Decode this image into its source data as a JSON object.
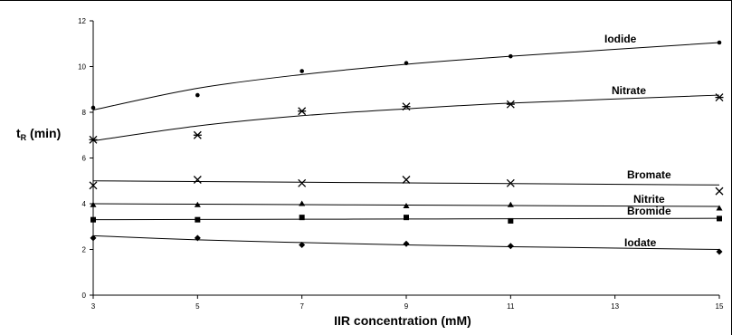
{
  "chart_data": {
    "type": "scatter",
    "title": "",
    "xlabel": "IIR concentration (mM)",
    "ylabel": {
      "main": "t",
      "subscript": "R",
      "suffix": " (min)"
    },
    "xlim": [
      3,
      15
    ],
    "ylim": [
      0,
      12
    ],
    "xticks": [
      "3",
      "5",
      "7",
      "9",
      "11",
      "13",
      "15"
    ],
    "yticks": [
      "0",
      "2",
      "4",
      "6",
      "8",
      "10",
      "12"
    ],
    "grid": false,
    "legend": "none",
    "series": [
      {
        "name": "Iodide",
        "marker": "circle",
        "x": [
          3,
          5,
          7,
          9,
          11,
          15
        ],
        "y": [
          8.2,
          8.75,
          9.8,
          10.15,
          10.45,
          11.05
        ],
        "trend": [
          8.1,
          9.05,
          9.65,
          10.1,
          10.45,
          11.05
        ]
      },
      {
        "name": "Nitrate",
        "marker": "asterisk",
        "x": [
          3,
          5,
          7,
          9,
          11,
          15
        ],
        "y": [
          6.8,
          7.0,
          8.05,
          8.25,
          8.35,
          8.65
        ],
        "trend": [
          6.75,
          7.4,
          7.85,
          8.15,
          8.4,
          8.75
        ]
      },
      {
        "name": "Bromate",
        "marker": "x",
        "x": [
          3,
          5,
          7,
          9,
          11,
          15
        ],
        "y": [
          4.8,
          5.05,
          4.9,
          5.05,
          4.9,
          4.55
        ],
        "trend": [
          5.0,
          4.97,
          4.94,
          4.91,
          4.88,
          4.82
        ]
      },
      {
        "name": "Nitrite",
        "marker": "triangle",
        "x": [
          3,
          5,
          7,
          9,
          11,
          15
        ],
        "y": [
          3.95,
          3.95,
          4.0,
          3.9,
          3.95,
          3.8
        ],
        "trend": [
          4.0,
          3.98,
          3.96,
          3.94,
          3.92,
          3.88
        ]
      },
      {
        "name": "Bromide",
        "marker": "square",
        "x": [
          3,
          5,
          7,
          9,
          11,
          15
        ],
        "y": [
          3.3,
          3.3,
          3.4,
          3.4,
          3.25,
          3.35
        ],
        "trend": [
          3.3,
          3.31,
          3.32,
          3.33,
          3.34,
          3.36
        ]
      },
      {
        "name": "Iodate",
        "marker": "diamond",
        "x": [
          3,
          5,
          7,
          9,
          11,
          15
        ],
        "y": [
          2.5,
          2.5,
          2.2,
          2.25,
          2.15,
          1.9
        ],
        "trend": [
          2.6,
          2.42,
          2.3,
          2.2,
          2.12,
          2.0
        ]
      }
    ]
  },
  "colors": {
    "ink": "#000000",
    "background": "#ffffff"
  }
}
